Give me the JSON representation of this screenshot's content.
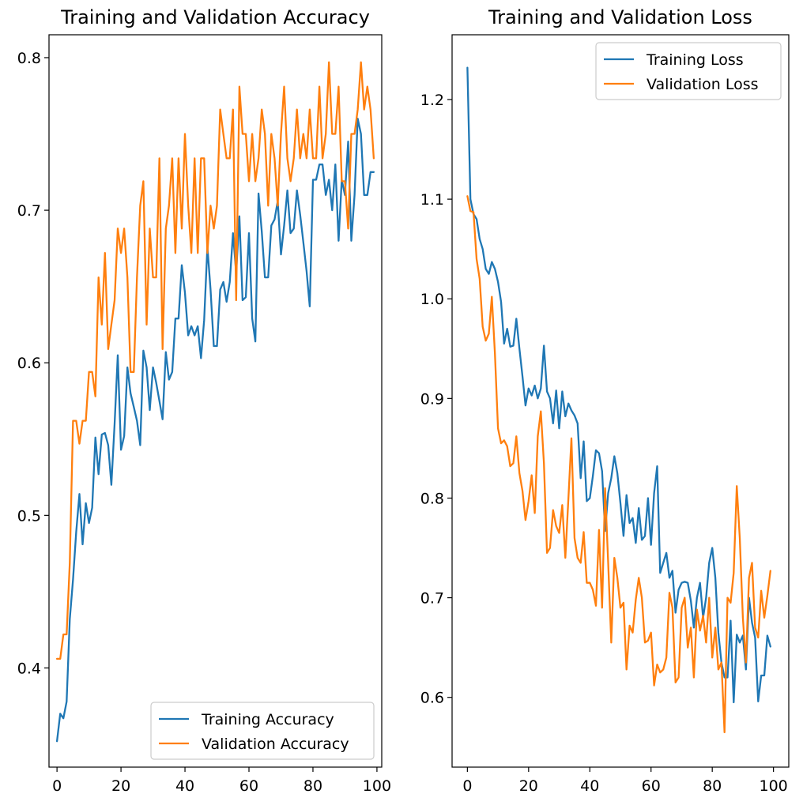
{
  "chart_data": [
    {
      "type": "line",
      "title": "Training and Validation Accuracy",
      "xlabel": "",
      "ylabel": "",
      "xlim": [
        -2.5,
        101.5
      ],
      "ylim": [
        0.335,
        0.815
      ],
      "xticks": [
        0,
        20,
        40,
        60,
        80,
        100
      ],
      "yticks": [
        0.4,
        0.5,
        0.6,
        0.7,
        0.8
      ],
      "xtick_labels": [
        "0",
        "20",
        "40",
        "60",
        "80",
        "100"
      ],
      "ytick_labels": [
        "0.4",
        "0.5",
        "0.6",
        "0.7",
        "0.8"
      ],
      "grid": false,
      "legend_position": "lower-right",
      "series": [
        {
          "name": "Training Accuracy",
          "color": "#1f77b4",
          "x": [
            0,
            1,
            2,
            3,
            4,
            5,
            6,
            7,
            8,
            9,
            10,
            11,
            12,
            13,
            14,
            15,
            16,
            17,
            18,
            19,
            20,
            21,
            22,
            23,
            24,
            25,
            26,
            27,
            28,
            29,
            30,
            31,
            32,
            33,
            34,
            35,
            36,
            37,
            38,
            39,
            40,
            41,
            42,
            43,
            44,
            45,
            46,
            47,
            48,
            49,
            50,
            51,
            52,
            53,
            54,
            55,
            56,
            57,
            58,
            59,
            60,
            61,
            62,
            63,
            64,
            65,
            66,
            67,
            68,
            69,
            70,
            71,
            72,
            73,
            74,
            75,
            76,
            77,
            78,
            79,
            80,
            81,
            82,
            83,
            84,
            85,
            86,
            87,
            88,
            89,
            90,
            91,
            92,
            93,
            94,
            95,
            96,
            97,
            98,
            99
          ],
          "values": [
            0.352,
            0.37,
            0.367,
            0.378,
            0.432,
            0.458,
            0.489,
            0.514,
            0.481,
            0.508,
            0.495,
            0.505,
            0.551,
            0.527,
            0.553,
            0.554,
            0.546,
            0.52,
            0.56,
            0.605,
            0.543,
            0.552,
            0.597,
            0.58,
            0.571,
            0.562,
            0.546,
            0.608,
            0.597,
            0.569,
            0.597,
            0.587,
            0.575,
            0.563,
            0.607,
            0.589,
            0.594,
            0.629,
            0.629,
            0.664,
            0.646,
            0.618,
            0.624,
            0.618,
            0.624,
            0.603,
            0.628,
            0.676,
            0.648,
            0.611,
            0.611,
            0.648,
            0.653,
            0.64,
            0.653,
            0.685,
            0.659,
            0.696,
            0.641,
            0.643,
            0.685,
            0.629,
            0.614,
            0.711,
            0.686,
            0.656,
            0.656,
            0.69,
            0.694,
            0.706,
            0.671,
            0.69,
            0.713,
            0.685,
            0.688,
            0.713,
            0.697,
            0.679,
            0.66,
            0.637,
            0.72,
            0.72,
            0.73,
            0.73,
            0.71,
            0.72,
            0.7,
            0.73,
            0.68,
            0.72,
            0.71,
            0.745,
            0.68,
            0.71,
            0.76,
            0.75,
            0.71,
            0.71,
            0.725,
            0.725
          ]
        },
        {
          "name": "Validation Accuracy",
          "color": "#ff7f0e",
          "x": [
            0,
            1,
            2,
            3,
            4,
            5,
            6,
            7,
            8,
            9,
            10,
            11,
            12,
            13,
            14,
            15,
            16,
            17,
            18,
            19,
            20,
            21,
            22,
            23,
            24,
            25,
            26,
            27,
            28,
            29,
            30,
            31,
            32,
            33,
            34,
            35,
            36,
            37,
            38,
            39,
            40,
            41,
            42,
            43,
            44,
            45,
            46,
            47,
            48,
            49,
            50,
            51,
            52,
            53,
            54,
            55,
            56,
            57,
            58,
            59,
            60,
            61,
            62,
            63,
            64,
            65,
            66,
            67,
            68,
            69,
            70,
            71,
            72,
            73,
            74,
            75,
            76,
            77,
            78,
            79,
            80,
            81,
            82,
            83,
            84,
            85,
            86,
            87,
            88,
            89,
            90,
            91,
            92,
            93,
            94,
            95,
            96,
            97,
            98,
            99
          ],
          "values": [
            0.406,
            0.406,
            0.422,
            0.422,
            0.469,
            0.562,
            0.562,
            0.547,
            0.562,
            0.562,
            0.594,
            0.594,
            0.578,
            0.656,
            0.625,
            0.672,
            0.609,
            0.625,
            0.641,
            0.688,
            0.672,
            0.688,
            0.656,
            0.594,
            0.594,
            0.656,
            0.703,
            0.719,
            0.625,
            0.688,
            0.656,
            0.656,
            0.734,
            0.609,
            0.688,
            0.703,
            0.734,
            0.672,
            0.734,
            0.688,
            0.75,
            0.703,
            0.672,
            0.734,
            0.672,
            0.734,
            0.734,
            0.672,
            0.703,
            0.688,
            0.703,
            0.766,
            0.75,
            0.734,
            0.734,
            0.766,
            0.641,
            0.781,
            0.75,
            0.75,
            0.719,
            0.75,
            0.719,
            0.734,
            0.766,
            0.75,
            0.703,
            0.75,
            0.734,
            0.703,
            0.75,
            0.781,
            0.734,
            0.719,
            0.734,
            0.766,
            0.734,
            0.75,
            0.734,
            0.766,
            0.734,
            0.734,
            0.781,
            0.734,
            0.75,
            0.797,
            0.75,
            0.75,
            0.781,
            0.719,
            0.719,
            0.688,
            0.75,
            0.75,
            0.766,
            0.797,
            0.766,
            0.781,
            0.766,
            0.734
          ]
        }
      ]
    },
    {
      "type": "line",
      "title": "Training and Validation Loss",
      "xlabel": "",
      "ylabel": "",
      "xlim": [
        -5,
        105
      ],
      "ylim": [
        0.53,
        1.265
      ],
      "xticks": [
        0,
        20,
        40,
        60,
        80,
        100
      ],
      "yticks": [
        0.6,
        0.7,
        0.8,
        0.9,
        1.0,
        1.1,
        1.2
      ],
      "xtick_labels": [
        "0",
        "20",
        "40",
        "60",
        "80",
        "100"
      ],
      "ytick_labels": [
        "0.6",
        "0.7",
        "0.8",
        "0.9",
        "1.0",
        "1.1",
        "1.2"
      ],
      "grid": false,
      "legend_position": "upper-right",
      "series": [
        {
          "name": "Training Loss",
          "color": "#1f77b4",
          "x": [
            0,
            1,
            2,
            3,
            4,
            5,
            6,
            7,
            8,
            9,
            10,
            11,
            12,
            13,
            14,
            15,
            16,
            17,
            18,
            19,
            20,
            21,
            22,
            23,
            24,
            25,
            26,
            27,
            28,
            29,
            30,
            31,
            32,
            33,
            34,
            35,
            36,
            37,
            38,
            39,
            40,
            41,
            42,
            43,
            44,
            45,
            46,
            47,
            48,
            49,
            50,
            51,
            52,
            53,
            54,
            55,
            56,
            57,
            58,
            59,
            60,
            61,
            62,
            63,
            64,
            65,
            66,
            67,
            68,
            69,
            70,
            71,
            72,
            73,
            74,
            75,
            76,
            77,
            78,
            79,
            80,
            81,
            82,
            83,
            84,
            85,
            86,
            87,
            88,
            89,
            90,
            91,
            92,
            93,
            94,
            95,
            96,
            97,
            98,
            99
          ],
          "values": [
            1.232,
            1.1,
            1.085,
            1.08,
            1.06,
            1.05,
            1.03,
            1.025,
            1.037,
            1.03,
            1.017,
            0.997,
            0.955,
            0.97,
            0.952,
            0.953,
            0.98,
            0.95,
            0.922,
            0.893,
            0.91,
            0.903,
            0.913,
            0.9,
            0.91,
            0.953,
            0.907,
            0.9,
            0.875,
            0.908,
            0.87,
            0.907,
            0.882,
            0.895,
            0.888,
            0.883,
            0.875,
            0.82,
            0.857,
            0.797,
            0.8,
            0.822,
            0.848,
            0.845,
            0.827,
            0.767,
            0.805,
            0.82,
            0.842,
            0.825,
            0.795,
            0.762,
            0.803,
            0.775,
            0.78,
            0.755,
            0.79,
            0.758,
            0.762,
            0.8,
            0.753,
            0.805,
            0.832,
            0.725,
            0.735,
            0.745,
            0.72,
            0.727,
            0.685,
            0.708,
            0.715,
            0.716,
            0.715,
            0.697,
            0.67,
            0.7,
            0.715,
            0.68,
            0.7,
            0.735,
            0.75,
            0.72,
            0.665,
            0.635,
            0.62,
            0.62,
            0.677,
            0.595,
            0.663,
            0.655,
            0.662,
            0.628,
            0.7,
            0.675,
            0.66,
            0.596,
            0.622,
            0.622,
            0.662,
            0.651
          ]
        },
        {
          "name": "Validation Loss",
          "color": "#ff7f0e",
          "x": [
            0,
            1,
            2,
            3,
            4,
            5,
            6,
            7,
            8,
            9,
            10,
            11,
            12,
            13,
            14,
            15,
            16,
            17,
            18,
            19,
            20,
            21,
            22,
            23,
            24,
            25,
            26,
            27,
            28,
            29,
            30,
            31,
            32,
            33,
            34,
            35,
            36,
            37,
            38,
            39,
            40,
            41,
            42,
            43,
            44,
            45,
            46,
            47,
            48,
            49,
            50,
            51,
            52,
            53,
            54,
            55,
            56,
            57,
            58,
            59,
            60,
            61,
            62,
            63,
            64,
            65,
            66,
            67,
            68,
            69,
            70,
            71,
            72,
            73,
            74,
            75,
            76,
            77,
            78,
            79,
            80,
            81,
            82,
            83,
            84,
            85,
            86,
            87,
            88,
            89,
            90,
            91,
            92,
            93,
            94,
            95,
            96,
            97,
            98,
            99
          ],
          "values": [
            1.103,
            1.088,
            1.087,
            1.04,
            1.02,
            0.972,
            0.958,
            0.965,
            1.002,
            0.945,
            0.87,
            0.855,
            0.858,
            0.852,
            0.832,
            0.835,
            0.862,
            0.825,
            0.807,
            0.778,
            0.797,
            0.823,
            0.785,
            0.862,
            0.887,
            0.835,
            0.745,
            0.75,
            0.788,
            0.772,
            0.765,
            0.793,
            0.74,
            0.8,
            0.86,
            0.76,
            0.74,
            0.735,
            0.766,
            0.715,
            0.715,
            0.708,
            0.692,
            0.768,
            0.69,
            0.81,
            0.735,
            0.655,
            0.74,
            0.72,
            0.69,
            0.695,
            0.628,
            0.672,
            0.665,
            0.698,
            0.72,
            0.7,
            0.655,
            0.657,
            0.665,
            0.612,
            0.633,
            0.625,
            0.628,
            0.64,
            0.705,
            0.69,
            0.615,
            0.62,
            0.69,
            0.7,
            0.65,
            0.67,
            0.62,
            0.688,
            0.667,
            0.682,
            0.655,
            0.7,
            0.64,
            0.67,
            0.628,
            0.635,
            0.565,
            0.7,
            0.695,
            0.725,
            0.812,
            0.76,
            0.68,
            0.635,
            0.72,
            0.735,
            0.67,
            0.66,
            0.707,
            0.68,
            0.702,
            0.727
          ]
        }
      ]
    }
  ]
}
